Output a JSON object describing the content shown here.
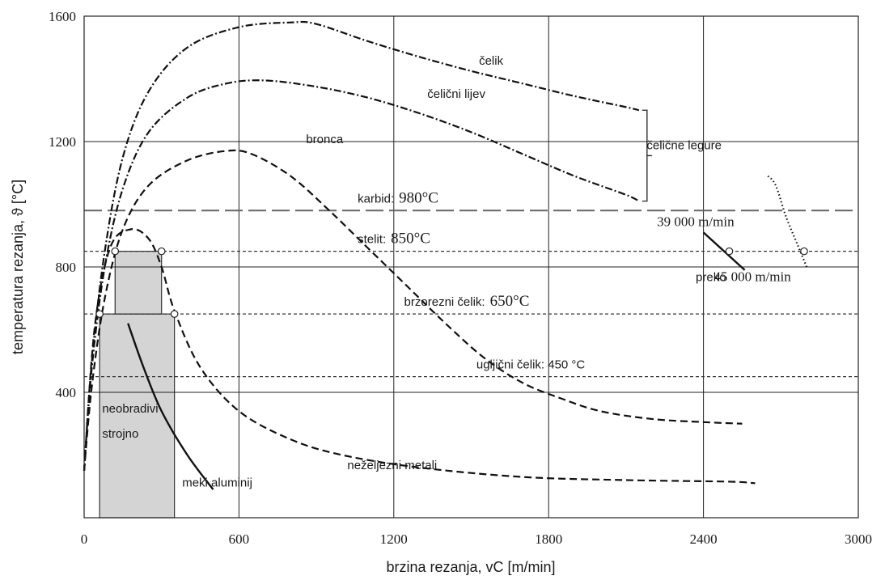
{
  "chart_data": {
    "type": "line",
    "title": "",
    "xlabel": "brzina rezanja, vC [m/min]",
    "ylabel": "temperatura rezanja, ϑ [°C]",
    "xlim": [
      0,
      3000
    ],
    "ylim": [
      0,
      1600
    ],
    "xticks": [
      0,
      600,
      1200,
      1800,
      2400,
      3000
    ],
    "yticks": [
      400,
      800,
      1200,
      1600
    ],
    "grid": true,
    "series": [
      {
        "name": "čelik",
        "style": "dash-dot",
        "x": [
          0,
          30,
          80,
          150,
          250,
          400,
          600,
          800,
          900,
          1100,
          1300,
          1500,
          1700,
          1900,
          2100,
          2150
        ],
        "y": [
          150,
          500,
          850,
          1150,
          1360,
          1500,
          1565,
          1580,
          1575,
          1520,
          1470,
          1425,
          1385,
          1345,
          1310,
          1300
        ]
      },
      {
        "name": "čelični lijev",
        "style": "dash-dot",
        "x": [
          0,
          30,
          80,
          150,
          250,
          400,
          550,
          700,
          900,
          1100,
          1300,
          1500,
          1700,
          1900,
          2100,
          2150
        ],
        "y": [
          150,
          480,
          800,
          1050,
          1230,
          1340,
          1385,
          1395,
          1375,
          1340,
          1290,
          1230,
          1160,
          1090,
          1030,
          1010
        ]
      },
      {
        "name": "bronca",
        "style": "dashed",
        "x": [
          0,
          30,
          80,
          150,
          250,
          400,
          550,
          650,
          800,
          950,
          1100,
          1250,
          1400,
          1550,
          1700,
          1850,
          2000,
          2200,
          2400,
          2550
        ],
        "y": [
          150,
          420,
          700,
          920,
          1060,
          1140,
          1170,
          1160,
          1090,
          980,
          860,
          740,
          620,
          510,
          430,
          380,
          340,
          315,
          305,
          300
        ]
      },
      {
        "name": "neželjezni metali",
        "style": "dashed",
        "x": [
          0,
          40,
          100,
          180,
          250,
          300,
          350,
          450,
          600,
          800,
          1000,
          1300,
          1700,
          2100,
          2500,
          2600
        ],
        "y": [
          150,
          600,
          860,
          920,
          890,
          800,
          660,
          480,
          340,
          250,
          200,
          160,
          130,
          120,
          115,
          110
        ]
      },
      {
        "name": "meki aluminij",
        "style": "solid",
        "x": [
          170,
          230,
          300,
          400,
          500
        ],
        "y": [
          620,
          480,
          340,
          200,
          90
        ]
      },
      {
        "name": "39 000 m/min",
        "style": "solid",
        "x": [
          2400,
          2480,
          2560
        ],
        "y": [
          910,
          850,
          790
        ]
      },
      {
        "name": "preko 45 000 m/min",
        "style": "dotted",
        "x": [
          2650,
          2680,
          2720,
          2760,
          2800
        ],
        "y": [
          1090,
          1060,
          960,
          880,
          800
        ]
      }
    ],
    "horizontal_lines": [
      {
        "label": "karbid:",
        "value_text": "980°C",
        "y": 980,
        "style": "long-dash"
      },
      {
        "label": "stelit:",
        "value_text": "850°C",
        "y": 850,
        "style": "short-dash"
      },
      {
        "label": "brzorezni čelik:",
        "value_text": "650°C",
        "y": 650,
        "style": "short-dash"
      },
      {
        "label": "ugljični čelik: 450 °C",
        "value_text": "",
        "y": 450,
        "style": "short-dash"
      }
    ],
    "shaded_regions": [
      {
        "label": "neobradivi strojno",
        "x": [
          60,
          350
        ],
        "y": [
          0,
          650
        ]
      },
      {
        "label": "",
        "x": [
          120,
          300
        ],
        "y": [
          650,
          850
        ]
      }
    ],
    "annotations": [
      {
        "text": "čelik",
        "x": 1530,
        "y": 1445
      },
      {
        "text": "čelični lijev",
        "x": 1330,
        "y": 1340
      },
      {
        "text": "bronca",
        "x": 860,
        "y": 1195
      },
      {
        "text": "čelične legure",
        "x": 2180,
        "y": 1175
      },
      {
        "text": "39 000 m/min",
        "x": 2220,
        "y": 930
      },
      {
        "text": "preko",
        "x": 2370,
        "y": 755
      },
      {
        "text": "45 000 m/min",
        "x": 2440,
        "y": 755
      },
      {
        "text": "neželjezni metali",
        "x": 1020,
        "y": 155
      },
      {
        "text": "meki aluminij",
        "x": 380,
        "y": 100
      },
      {
        "text": "neobradivi",
        "x": 70,
        "y": 335
      },
      {
        "text": "strojno",
        "x": 70,
        "y": 255
      }
    ],
    "markers": [
      {
        "x": 60,
        "y": 650
      },
      {
        "x": 120,
        "y": 850
      },
      {
        "x": 300,
        "y": 850
      },
      {
        "x": 350,
        "y": 650
      },
      {
        "x": 2500,
        "y": 850
      },
      {
        "x": 2790,
        "y": 850
      }
    ]
  }
}
